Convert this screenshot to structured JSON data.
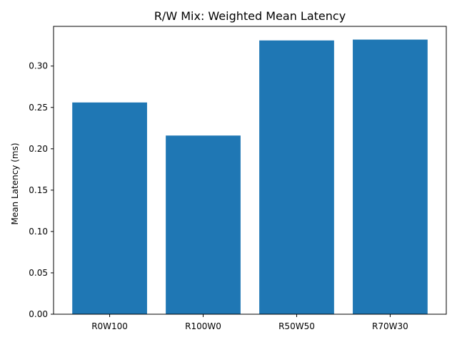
{
  "chart_data": {
    "type": "bar",
    "title": "R/W Mix: Weighted Mean Latency",
    "xlabel": "",
    "ylabel": "Mean Latency (ms)",
    "categories": [
      "R0W100",
      "R100W0",
      "R50W50",
      "R70W30"
    ],
    "values": [
      0.256,
      0.216,
      0.331,
      0.332
    ],
    "ylim": [
      0,
      0.348
    ],
    "yticks": [
      0.0,
      0.05,
      0.1,
      0.15,
      0.2,
      0.25,
      0.3
    ],
    "ytick_labels": [
      "0.00",
      "0.05",
      "0.10",
      "0.15",
      "0.20",
      "0.25",
      "0.30"
    ],
    "bar_color": "#1f77b4",
    "grid": false
  }
}
